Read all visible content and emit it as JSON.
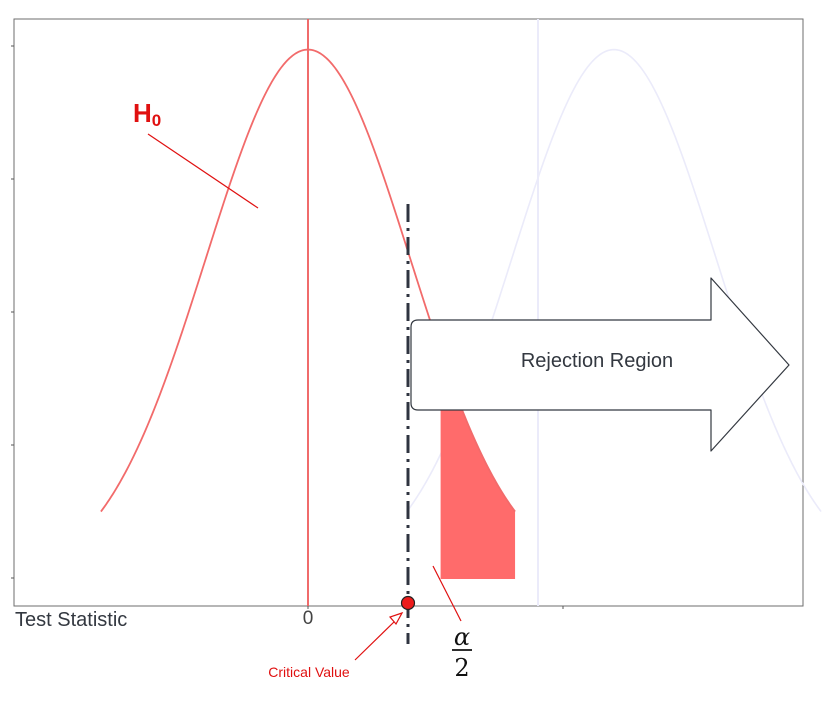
{
  "colors": {
    "h0": "#f26b6b",
    "h0_line": "#ef5b5b",
    "h0_fill": "#ff6b6b",
    "h0_label": "#e01010",
    "h1": "#ebebfa",
    "critical": "#e01010",
    "dash": "#2f3440",
    "frame": "#6e6e6e",
    "text": "#333840"
  },
  "labels": {
    "h0_main": "H",
    "h0_sub": "0",
    "rejection_region": "Rejection Region",
    "x_axis_title": "Test Statistic",
    "zero_tick": "0",
    "critical_value": "Critical Value",
    "alpha_num": "α",
    "alpha_den": "2"
  },
  "chart_data": {
    "type": "line",
    "xlim": [
      -3.6,
      6.4
    ],
    "ylim": [
      -0.02,
      0.42
    ],
    "critical_value": 1.3,
    "series": [
      {
        "mean": 0,
        "sd": 1
      },
      {
        "mean": 3,
        "sd": 1
      }
    ]
  }
}
